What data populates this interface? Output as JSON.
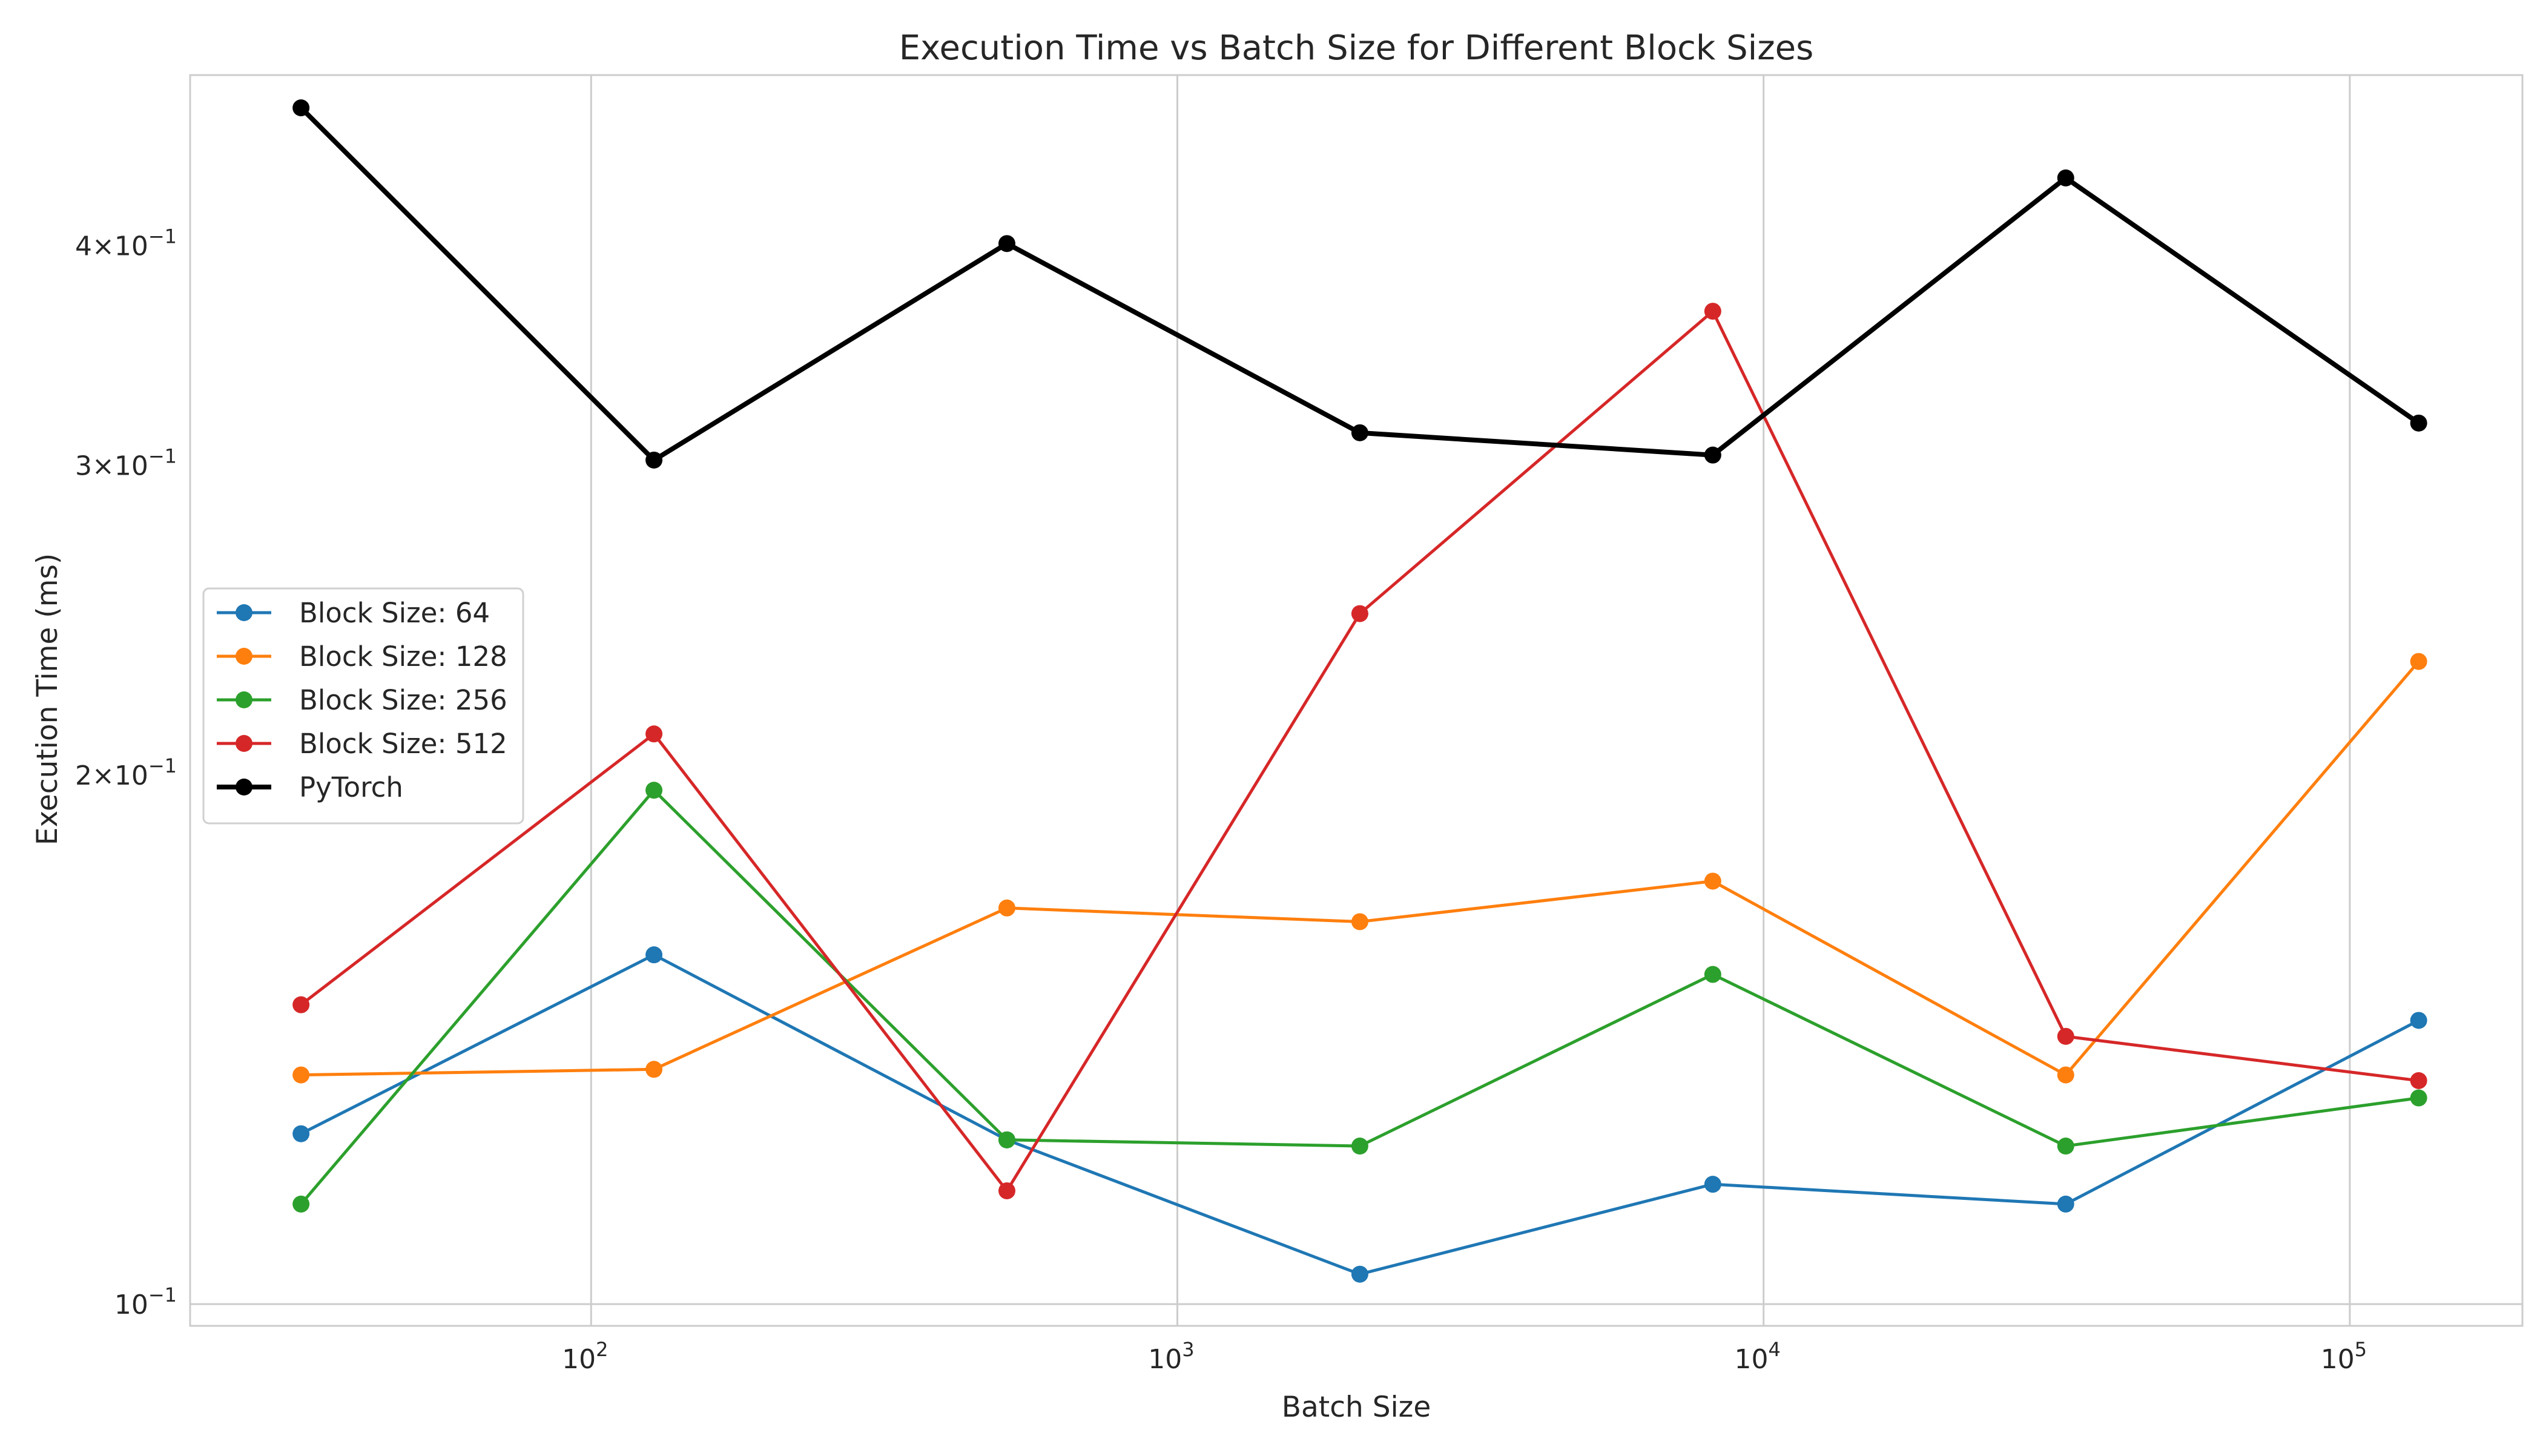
{
  "chart_data": {
    "type": "line",
    "title": "Execution Time vs Batch Size for Different Block Sizes",
    "xlabel": "Batch Size",
    "ylabel": "Execution Time (ms)",
    "xscale": "log",
    "yscale": "log",
    "xlim": [
      20.7,
      197000
    ],
    "ylim": [
      0.0972,
      0.5
    ],
    "grid": true,
    "legend_position": "center-left",
    "x": [
      32,
      128,
      512,
      2048,
      8192,
      32768,
      131072
    ],
    "x_ticks": [
      {
        "value": 100,
        "base": "10",
        "exp": "2"
      },
      {
        "value": 1000,
        "base": "10",
        "exp": "3"
      },
      {
        "value": 10000,
        "base": "10",
        "exp": "4"
      },
      {
        "value": 100000,
        "base": "10",
        "exp": "5"
      }
    ],
    "y_ticks": [
      {
        "value": 0.1,
        "base": "10",
        "exp": "−1"
      },
      {
        "value": 0.2,
        "base": "2×10",
        "exp": "−1"
      },
      {
        "value": 0.3,
        "base": "3×10",
        "exp": "−1"
      },
      {
        "value": 0.4,
        "base": "4×10",
        "exp": "−1"
      }
    ],
    "series": [
      {
        "name": "Block Size: 64",
        "color": "#1f77b4",
        "values": [
          0.125,
          0.158,
          0.124,
          0.104,
          0.117,
          0.114,
          0.145
        ]
      },
      {
        "name": "Block Size: 128",
        "color": "#ff7f0e",
        "values": [
          0.135,
          0.136,
          0.168,
          0.165,
          0.174,
          0.135,
          0.232
        ]
      },
      {
        "name": "Block Size: 256",
        "color": "#2ca02c",
        "values": [
          0.114,
          0.196,
          0.124,
          0.123,
          0.154,
          0.123,
          0.131
        ]
      },
      {
        "name": "Block Size: 512",
        "color": "#d62728",
        "values": [
          0.148,
          0.211,
          0.116,
          0.247,
          0.367,
          0.142,
          0.134
        ]
      },
      {
        "name": "PyTorch",
        "color": "#000000",
        "values": [
          0.479,
          0.302,
          0.401,
          0.313,
          0.304,
          0.437,
          0.317
        ]
      }
    ]
  }
}
